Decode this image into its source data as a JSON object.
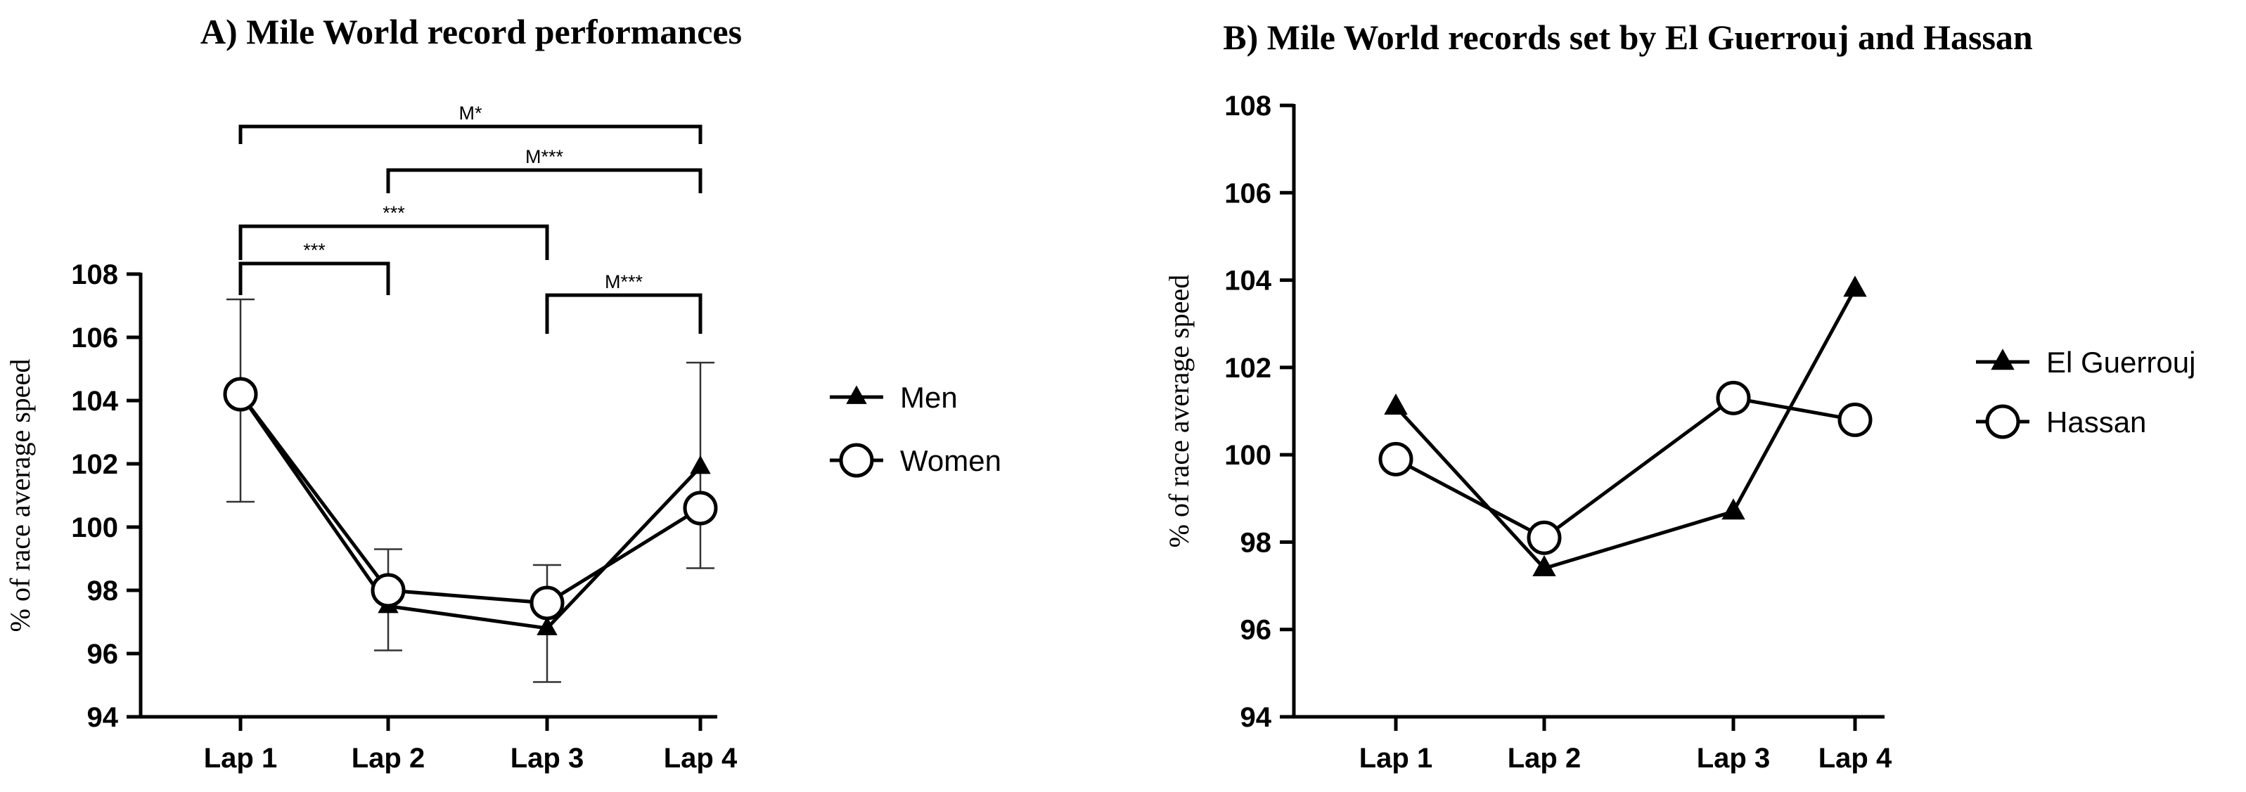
{
  "chart_data": [
    {
      "type": "line",
      "title": "A) Mile World record performances",
      "xlabel": "",
      "ylabel": "% of race average speed",
      "categories": [
        "Lap 1",
        "Lap 2",
        "Lap 3",
        "Lap 4"
      ],
      "ylim": [
        94,
        108
      ],
      "yticks": [
        94,
        96,
        98,
        100,
        102,
        104,
        106,
        108
      ],
      "series": [
        {
          "name": "Men",
          "marker": "triangle",
          "values": [
            104.2,
            97.5,
            96.8,
            101.9
          ]
        },
        {
          "name": "Women",
          "marker": "circle",
          "values": [
            104.2,
            98.0,
            97.6,
            100.6
          ],
          "error_low": [
            100.8,
            96.1,
            95.1,
            98.7
          ],
          "error_high": [
            107.2,
            99.3,
            98.8,
            105.2
          ]
        }
      ],
      "legend_position": "right",
      "annotations": [
        {
          "from": "Lap 1",
          "to": "Lap 4",
          "label": "M*"
        },
        {
          "from": "Lap 2",
          "to": "Lap 4",
          "label": "M***"
        },
        {
          "from": "Lap 1",
          "to": "Lap 3",
          "label": "***"
        },
        {
          "from": "Lap 1",
          "to": "Lap 2",
          "label": "***"
        },
        {
          "from": "Lap 3",
          "to": "Lap 4",
          "label": "M***"
        }
      ]
    },
    {
      "type": "line",
      "title": "B) Mile World records set by El Guerrouj and Hassan",
      "xlabel": "",
      "ylabel": "% of race average speed",
      "categories": [
        "Lap 1",
        "Lap 2",
        "Lap 3",
        "Lap 4"
      ],
      "ylim": [
        94,
        108
      ],
      "yticks": [
        94,
        96,
        98,
        100,
        102,
        104,
        106,
        108
      ],
      "series": [
        {
          "name": "El Guerrouj",
          "marker": "triangle",
          "values": [
            101.1,
            97.4,
            98.7,
            103.8
          ]
        },
        {
          "name": "Hassan",
          "marker": "circle",
          "values": [
            99.9,
            98.1,
            101.3,
            100.8
          ]
        }
      ],
      "legend_position": "right"
    }
  ]
}
